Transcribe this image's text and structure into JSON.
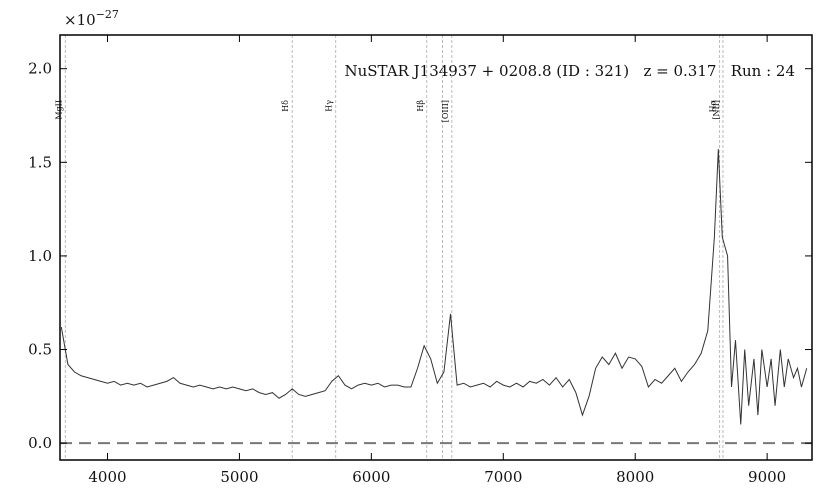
{
  "chart_data": {
    "type": "line",
    "title": "NuSTAR J134937 + 0208.8 (ID : 321)   z = 0.317   Run : 24",
    "y_multiplier": {
      "base": "×10",
      "exponent": "−27"
    },
    "x": [
      3650,
      3700,
      3750,
      3800,
      3850,
      3900,
      3950,
      4000,
      4050,
      4100,
      4150,
      4200,
      4250,
      4300,
      4350,
      4400,
      4450,
      4500,
      4550,
      4600,
      4650,
      4700,
      4750,
      4800,
      4850,
      4900,
      4950,
      5000,
      5050,
      5100,
      5150,
      5200,
      5250,
      5300,
      5350,
      5400,
      5450,
      5500,
      5550,
      5600,
      5650,
      5700,
      5750,
      5800,
      5850,
      5900,
      5950,
      6000,
      6050,
      6100,
      6150,
      6200,
      6250,
      6300,
      6350,
      6400,
      6450,
      6500,
      6550,
      6600,
      6650,
      6700,
      6750,
      6800,
      6850,
      6900,
      6950,
      7000,
      7050,
      7100,
      7150,
      7200,
      7250,
      7300,
      7350,
      7400,
      7450,
      7500,
      7550,
      7600,
      7650,
      7700,
      7750,
      7800,
      7850,
      7900,
      7950,
      8000,
      8050,
      8100,
      8150,
      8200,
      8250,
      8300,
      8350,
      8400,
      8450,
      8500,
      8550,
      8600,
      8630,
      8660,
      8700,
      8730,
      8760,
      8800,
      8830,
      8860,
      8900,
      8930,
      8960,
      9000,
      9030,
      9060,
      9100,
      9130,
      9160,
      9200,
      9230,
      9260,
      9300
    ],
    "series": [
      {
        "color": "#333333",
        "values": [
          0.62,
          0.42,
          0.38,
          0.36,
          0.35,
          0.34,
          0.33,
          0.32,
          0.33,
          0.31,
          0.32,
          0.31,
          0.32,
          0.3,
          0.31,
          0.32,
          0.33,
          0.35,
          0.32,
          0.31,
          0.3,
          0.31,
          0.3,
          0.29,
          0.3,
          0.29,
          0.3,
          0.29,
          0.28,
          0.29,
          0.27,
          0.26,
          0.27,
          0.24,
          0.26,
          0.29,
          0.26,
          0.25,
          0.26,
          0.27,
          0.28,
          0.33,
          0.36,
          0.31,
          0.29,
          0.31,
          0.32,
          0.31,
          0.32,
          0.3,
          0.31,
          0.31,
          0.3,
          0.3,
          0.4,
          0.52,
          0.45,
          0.32,
          0.38,
          0.69,
          0.31,
          0.32,
          0.3,
          0.31,
          0.32,
          0.3,
          0.33,
          0.31,
          0.3,
          0.32,
          0.3,
          0.33,
          0.32,
          0.34,
          0.31,
          0.35,
          0.3,
          0.34,
          0.27,
          0.15,
          0.25,
          0.4,
          0.46,
          0.42,
          0.48,
          0.4,
          0.46,
          0.45,
          0.41,
          0.3,
          0.34,
          0.32,
          0.36,
          0.4,
          0.33,
          0.38,
          0.42,
          0.48,
          0.6,
          1.1,
          1.57,
          1.1,
          1.0,
          0.3,
          0.55,
          0.1,
          0.5,
          0.2,
          0.45,
          0.15,
          0.5,
          0.3,
          0.45,
          0.2,
          0.5,
          0.3,
          0.45,
          0.35,
          0.4,
          0.3,
          0.4
        ]
      }
    ],
    "lines": [
      {
        "x": 3680,
        "label": "MgII"
      },
      {
        "x": 5400,
        "label": "Hδ"
      },
      {
        "x": 5730,
        "label": "Hγ"
      },
      {
        "x": 6420,
        "label": "Hβ"
      },
      {
        "x": 6540
      },
      {
        "x": 6610,
        "label": "[OIII]"
      },
      {
        "x": 8640,
        "label": "Hα"
      },
      {
        "x": 8665,
        "label": "[NII]"
      }
    ],
    "hline": 0,
    "xlim": [
      3640,
      9340
    ],
    "ylim": [
      -0.09,
      2.18
    ],
    "xticks": [
      4000,
      5000,
      6000,
      7000,
      8000,
      9000
    ],
    "yticks": [
      {
        "value": 0,
        "label": "0.0"
      },
      0.5,
      {
        "value": 1,
        "label": "1.0"
      },
      1.5,
      {
        "value": 2,
        "label": "2.0"
      }
    ]
  }
}
